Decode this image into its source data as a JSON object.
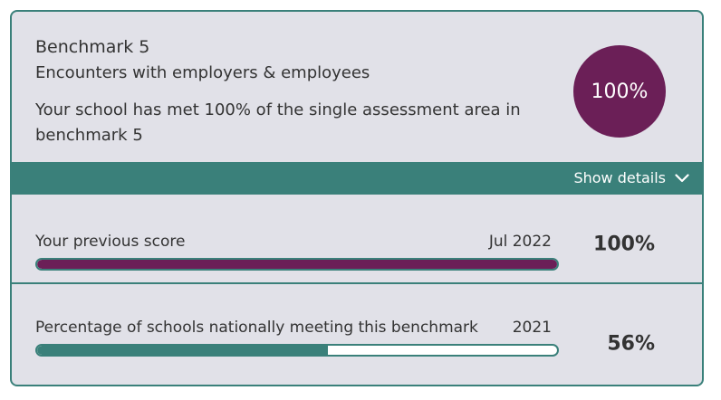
{
  "card": {
    "title": "Benchmark 5",
    "subtitle": "Encounters with employers & employees",
    "description": "Your school has met 100% of the single assessment area in benchmark 5",
    "score": "100%",
    "score_color": "#6b1f57"
  },
  "details_bar": {
    "label": "Show details",
    "icon": "chevron-down-icon",
    "color": "#3a807a"
  },
  "previous_score": {
    "label": "Your previous score",
    "date": "Jul 2022",
    "value": "100%",
    "fill_fraction": 1.0,
    "fill_color": "#6b1f57"
  },
  "national": {
    "label": "Percentage of schools nationally meeting this benchmark",
    "date": "2021",
    "value": "56%",
    "fill_fraction": 0.56,
    "fill_color": "#3a807a"
  }
}
